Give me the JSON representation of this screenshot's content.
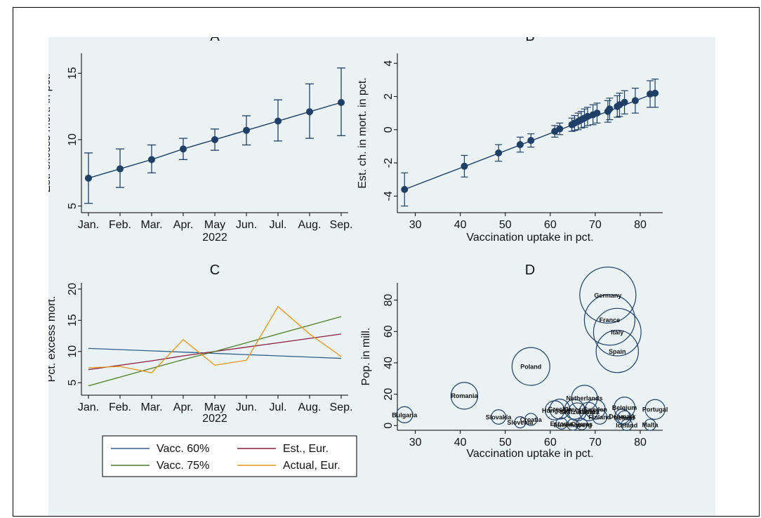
{
  "chart_data": [
    {
      "panel": "A",
      "type": "line",
      "title": "A",
      "xlabel": "2022",
      "ylabel": "Est. excess mort. in pct.",
      "categories": [
        "Jan.",
        "Feb.",
        "Mar.",
        "Apr.",
        "May",
        "Jun.",
        "Jul.",
        "Aug.",
        "Sep."
      ],
      "values": [
        7.1,
        7.8,
        8.5,
        9.3,
        10.0,
        10.7,
        11.4,
        12.1,
        12.8
      ],
      "ci_low": [
        5.2,
        6.4,
        7.5,
        8.5,
        9.2,
        9.6,
        9.9,
        10.1,
        10.3
      ],
      "ci_high": [
        9.0,
        9.3,
        9.6,
        10.1,
        10.8,
        11.8,
        13.0,
        14.2,
        15.4
      ],
      "ylim": [
        4.5,
        16.5
      ],
      "yticks": [
        5,
        10,
        15
      ],
      "grid": false
    },
    {
      "panel": "B",
      "type": "scatter",
      "title": "B",
      "xlabel": "Vaccination uptake in pct.",
      "ylabel": "Est. ch. in mort. in pct.",
      "x": [
        27.6,
        40.9,
        48.5,
        53.3,
        55.7,
        61.0,
        62.1,
        64.8,
        65.4,
        66.2,
        66.9,
        67.6,
        68.3,
        69.5,
        70.4,
        72.8,
        73.2,
        74.9,
        75.4,
        76.5,
        78.9,
        82.2,
        83.3
      ],
      "y": [
        -3.6,
        -2.2,
        -1.4,
        -0.9,
        -0.65,
        -0.1,
        0.05,
        0.3,
        0.4,
        0.5,
        0.6,
        0.7,
        0.8,
        0.9,
        1.0,
        1.1,
        1.25,
        1.4,
        1.5,
        1.65,
        1.75,
        2.15,
        2.2
      ],
      "err": [
        1.0,
        0.65,
        0.5,
        0.45,
        0.4,
        0.35,
        0.35,
        0.4,
        0.45,
        0.5,
        0.5,
        0.55,
        0.55,
        0.6,
        0.6,
        0.65,
        0.65,
        0.65,
        0.7,
        0.7,
        0.75,
        0.8,
        0.85
      ],
      "xlim": [
        26,
        85
      ],
      "ylim": [
        -5.0,
        4.6
      ],
      "xticks": [
        30,
        40,
        50,
        60,
        70,
        80
      ],
      "yticks": [
        -4,
        -2,
        0,
        2,
        4
      ],
      "grid": false
    },
    {
      "panel": "C",
      "type": "line",
      "title": "C",
      "xlabel": "2022",
      "ylabel": "Pct. excess mort.",
      "categories": [
        "Jan.",
        "Feb.",
        "Mar.",
        "Apr.",
        "May",
        "Jun.",
        "Jul.",
        "Aug.",
        "Sep."
      ],
      "ylim": [
        3,
        21
      ],
      "yticks": [
        5,
        10,
        15,
        20
      ],
      "series": [
        {
          "name": "Vacc. 60%",
          "color": "#2f5f8a",
          "values": [
            10.5,
            10.3,
            10.1,
            9.9,
            9.7,
            9.5,
            9.3,
            9.1,
            8.9
          ]
        },
        {
          "name": "Est., Eur.",
          "color": "#8b1e3f",
          "values": [
            7.1,
            7.8,
            8.5,
            9.3,
            10.0,
            10.7,
            11.4,
            12.1,
            12.8
          ]
        },
        {
          "name": "Vacc. 75%",
          "color": "#4d7c2a",
          "values": [
            4.5,
            5.9,
            7.3,
            8.7,
            10.0,
            11.4,
            12.8,
            14.2,
            15.6
          ]
        },
        {
          "name": "Actual, Eur.",
          "color": "#e8941a",
          "values": [
            7.4,
            7.6,
            6.6,
            11.9,
            7.8,
            8.6,
            17.2,
            12.8,
            9.2
          ]
        }
      ],
      "legend": "bottom",
      "grid": false
    },
    {
      "panel": "D",
      "type": "scatter",
      "title": "D",
      "xlabel": "Vaccination uptake in pct.",
      "ylabel": "Pop. in mill.",
      "xlim": [
        26,
        85
      ],
      "ylim": [
        -3,
        91
      ],
      "xticks": [
        30,
        40,
        50,
        60,
        70,
        80
      ],
      "yticks": [
        0,
        20,
        40,
        60,
        80
      ],
      "points": [
        {
          "label": "Bulgaria",
          "x": 27.6,
          "y": 6.9
        },
        {
          "label": "Romania",
          "x": 40.9,
          "y": 19.0
        },
        {
          "label": "Slovakia",
          "x": 48.5,
          "y": 5.5
        },
        {
          "label": "Slovenia",
          "x": 53.3,
          "y": 2.1
        },
        {
          "label": "Croatia",
          "x": 55.7,
          "y": 3.9
        },
        {
          "label": "Poland",
          "x": 55.7,
          "y": 37.7
        },
        {
          "label": "Hungary",
          "x": 61.0,
          "y": 9.7
        },
        {
          "label": "Czechia",
          "x": 62.1,
          "y": 10.5
        },
        {
          "label": "Estonia",
          "x": 62.5,
          "y": 1.3
        },
        {
          "label": "Greece",
          "x": 65.4,
          "y": 10.4
        },
        {
          "label": "Luxembourg",
          "x": 65.0,
          "y": 0.6
        },
        {
          "label": "Switzerland",
          "x": 66.0,
          "y": 8.7
        },
        {
          "label": "Cyprus",
          "x": 67.0,
          "y": 0.9
        },
        {
          "label": "Netherlands",
          "x": 67.6,
          "y": 17.5
        },
        {
          "label": "Austria",
          "x": 68.5,
          "y": 8.9
        },
        {
          "label": "Sweden",
          "x": 70.0,
          "y": 10.4
        },
        {
          "label": "Finland",
          "x": 71.0,
          "y": 5.5
        },
        {
          "label": "Germany",
          "x": 72.8,
          "y": 83.2
        },
        {
          "label": "France",
          "x": 73.2,
          "y": 67.4
        },
        {
          "label": "Italy",
          "x": 74.9,
          "y": 59.6
        },
        {
          "label": "Spain",
          "x": 74.9,
          "y": 47.3
        },
        {
          "label": "Belgium",
          "x": 76.5,
          "y": 11.5
        },
        {
          "label": "Denmark",
          "x": 76.0,
          "y": 5.8
        },
        {
          "label": "Ireland",
          "x": 76.5,
          "y": 5.0
        },
        {
          "label": "Iceland",
          "x": 77.0,
          "y": 0.4
        },
        {
          "label": "Portugal",
          "x": 83.3,
          "y": 10.3
        },
        {
          "label": "Malta",
          "x": 82.2,
          "y": 0.5
        }
      ],
      "grid": false
    }
  ]
}
